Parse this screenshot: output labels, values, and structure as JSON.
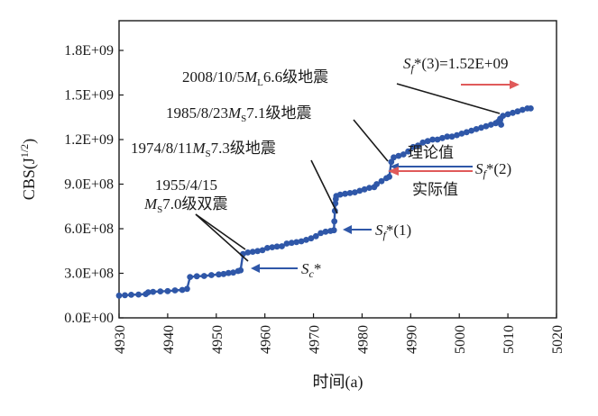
{
  "chart_data": {
    "type": "line",
    "xlabel": "时间(a)",
    "ylabel": "CBS(J",
    "ylabel_sup": "1/2",
    "ylabel_close": ")",
    "xlim": [
      4930,
      5020
    ],
    "ylim": [
      0,
      2000000000
    ],
    "x_ticks": [
      4930,
      4940,
      4950,
      4960,
      4970,
      4980,
      4990,
      5000,
      5010,
      5020
    ],
    "x_tick_labels": [
      "4930",
      "4940",
      "4950",
      "4960",
      "4970",
      "4980",
      "4990",
      "5000",
      "5010",
      "5020"
    ],
    "y_ticks": [
      0,
      300000000,
      600000000,
      900000000,
      1200000000,
      1500000000,
      1800000000
    ],
    "y_tick_labels": [
      "0.0E+00",
      "3.0E+08",
      "6.0E+08",
      "9.0E+08",
      "1.2E+09",
      "1.5E+09",
      "1.8E+09"
    ],
    "grid": false,
    "series": [
      {
        "color": "#2f57a8",
        "points": [
          [
            4930.0,
            150000000.0
          ],
          [
            4931.2,
            152000000.0
          ],
          [
            4932.5,
            155000000.0
          ],
          [
            4934.0,
            157000000.0
          ],
          [
            4935.5,
            160000000.0
          ],
          [
            4936.0,
            172000000.0
          ],
          [
            4937.0,
            175000000.0
          ],
          [
            4938.5,
            178000000.0
          ],
          [
            4940.0,
            180000000.0
          ],
          [
            4941.5,
            185000000.0
          ],
          [
            4943.0,
            188000000.0
          ],
          [
            4944.0,
            195000000.0
          ],
          [
            4944.6,
            275000000.0
          ],
          [
            4946.0,
            280000000.0
          ],
          [
            4947.5,
            282000000.0
          ],
          [
            4949.0,
            288000000.0
          ],
          [
            4950.5,
            292000000.0
          ],
          [
            4951.5,
            295000000.0
          ],
          [
            4952.5,
            302000000.0
          ],
          [
            4953.5,
            305000000.0
          ],
          [
            4954.5,
            315000000.0
          ],
          [
            4955.0,
            320000000.0
          ],
          [
            4955.5,
            430000000.0
          ],
          [
            4956.5,
            440000000.0
          ],
          [
            4957.5,
            445000000.0
          ],
          [
            4958.5,
            450000000.0
          ],
          [
            4959.5,
            455000000.0
          ],
          [
            4960.5,
            470000000.0
          ],
          [
            4961.5,
            475000000.0
          ],
          [
            4962.5,
            480000000.0
          ],
          [
            4963.5,
            482000000.0
          ],
          [
            4964.5,
            500000000.0
          ],
          [
            4965.5,
            505000000.0
          ],
          [
            4966.5,
            510000000.0
          ],
          [
            4967.5,
            515000000.0
          ],
          [
            4968.5,
            525000000.0
          ],
          [
            4969.5,
            535000000.0
          ],
          [
            4970.5,
            550000000.0
          ],
          [
            4971.5,
            570000000.0
          ],
          [
            4972.5,
            580000000.0
          ],
          [
            4973.5,
            585000000.0
          ],
          [
            4974.2,
            590000000.0
          ],
          [
            4974.3,
            650000000.0
          ],
          [
            4974.4,
            720000000.0
          ],
          [
            4974.5,
            770000000.0
          ],
          [
            4974.6,
            800000000.0
          ],
          [
            4974.7,
            820000000.0
          ],
          [
            4975.5,
            830000000.0
          ],
          [
            4976.5,
            835000000.0
          ],
          [
            4977.5,
            840000000.0
          ],
          [
            4978.5,
            845000000.0
          ],
          [
            4979.5,
            855000000.0
          ],
          [
            4980.5,
            865000000.0
          ],
          [
            4981.5,
            875000000.0
          ],
          [
            4982.5,
            880000000.0
          ],
          [
            4983.0,
            900000000.0
          ],
          [
            4984.0,
            920000000.0
          ],
          [
            4985.0,
            940000000.0
          ],
          [
            4985.6,
            950000000.0
          ],
          [
            4986.0,
            1050000000.0
          ],
          [
            4986.5,
            1080000000.0
          ],
          [
            4987.5,
            1090000000.0
          ],
          [
            4988.5,
            1100000000.0
          ],
          [
            4989.5,
            1120000000.0
          ],
          [
            4990.5,
            1150000000.0
          ],
          [
            4991.5,
            1160000000.0
          ],
          [
            4992.5,
            1180000000.0
          ],
          [
            4993.5,
            1190000000.0
          ],
          [
            4994.5,
            1200000000.0
          ],
          [
            4995.5,
            1200000000.0
          ],
          [
            4996.5,
            1210000000.0
          ],
          [
            4997.5,
            1220000000.0
          ],
          [
            4998.5,
            1220000000.0
          ],
          [
            4999.5,
            1230000000.0
          ],
          [
            5000.5,
            1240000000.0
          ],
          [
            5001.5,
            1250000000.0
          ],
          [
            5002.5,
            1260000000.0
          ],
          [
            5003.5,
            1270000000.0
          ],
          [
            5004.5,
            1280000000.0
          ],
          [
            5005.5,
            1290000000.0
          ],
          [
            5006.5,
            1300000000.0
          ],
          [
            5007.5,
            1310000000.0
          ],
          [
            5008.0,
            1320000000.0
          ],
          [
            5008.4,
            1340000000.0
          ],
          [
            5008.6,
            1300000000.0
          ],
          [
            5009.0,
            1360000000.0
          ],
          [
            5010.0,
            1370000000.0
          ],
          [
            5011.0,
            1380000000.0
          ],
          [
            5012.0,
            1390000000.0
          ],
          [
            5013.0,
            1400000000.0
          ],
          [
            5014.0,
            1410000000.0
          ],
          [
            5014.7,
            1410000000.0
          ]
        ]
      }
    ],
    "annotations": {
      "eq2008": {
        "pre": "2008/10/5",
        "M": "M",
        "sub": "L",
        "post": "6.6级地震"
      },
      "eq1985": {
        "pre": "1985/8/23",
        "M": "M",
        "sub": "S",
        "post": "7.1级地震"
      },
      "eq1974": {
        "pre": "1974/8/11",
        "M": "M",
        "sub": "S",
        "post": "7.3级地震"
      },
      "eq1955_line1": "1955/4/15",
      "eq1955": {
        "M": "M",
        "sub": "S",
        "post": "7.0级双震"
      },
      "sf3": {
        "S": "S",
        "sub": "f",
        "post": "*(3)=1.52E+09"
      },
      "sf2": {
        "S": "S",
        "sub": "f",
        "post": "*(2)"
      },
      "sf1": {
        "S": "S",
        "sub": "f",
        "post": "*(1)"
      },
      "sc": {
        "S": "S",
        "sub": "c",
        "post": "*"
      },
      "theory": "理论值",
      "actual": "实际值"
    },
    "colors": {
      "series": "#2f57a8",
      "red_arrow": "#e05a5a",
      "blue_arrow": "#2f57a8",
      "leader": "#1a1a1a"
    }
  }
}
